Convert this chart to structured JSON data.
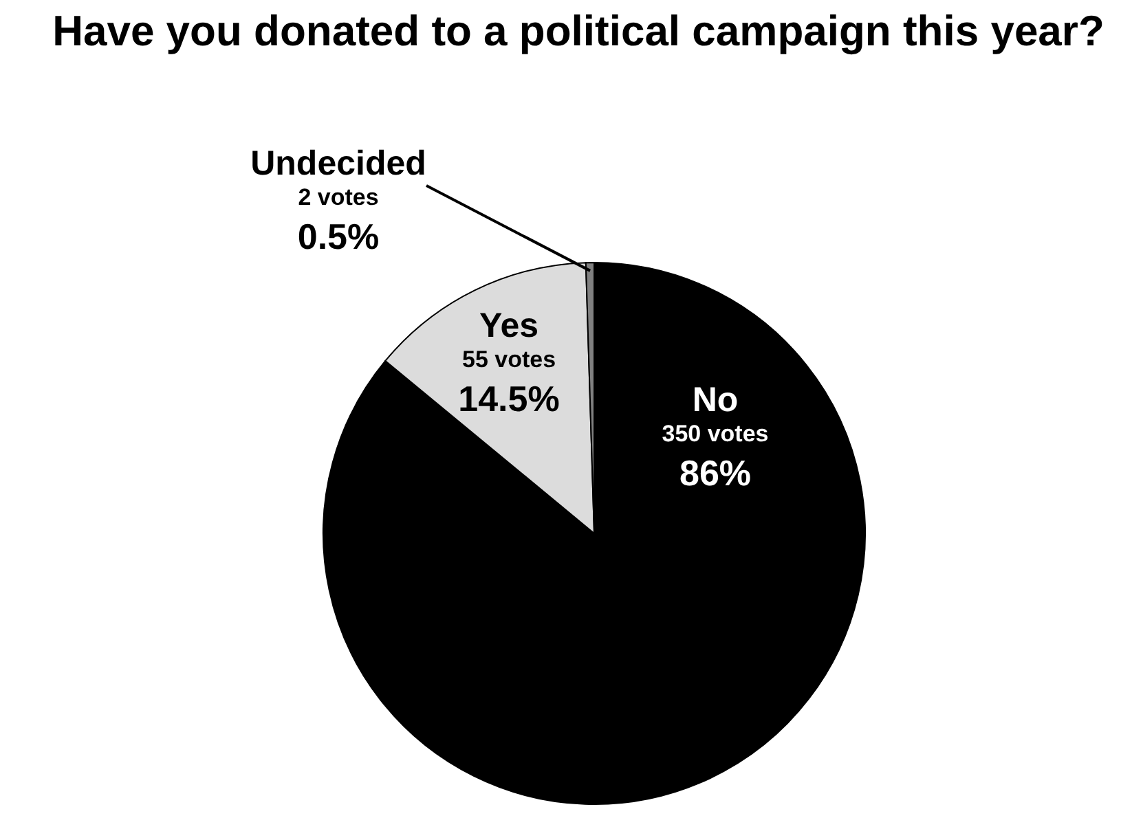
{
  "chart_data": {
    "type": "pie",
    "title": "Have you donated to a political campaign this year?",
    "categories": [
      "No",
      "Yes",
      "Undecided"
    ],
    "values": [
      350,
      55,
      2
    ],
    "colors": [
      "#000000",
      "#dcdcdc",
      "#808080"
    ],
    "value_labels": [
      "350 votes\n86%",
      "55 votes\n14.5%",
      "2 votes\n0.5%"
    ]
  }
}
